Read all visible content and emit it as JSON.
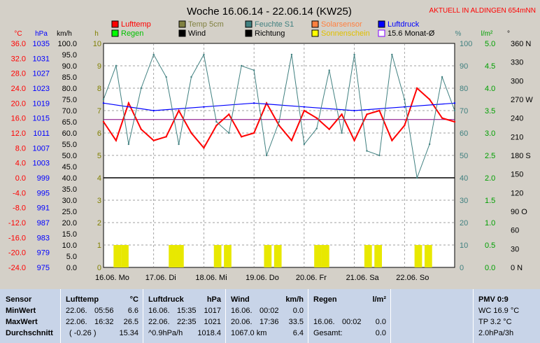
{
  "chart_data": {
    "type": "line",
    "title": "Woche 16.06.14 - 22.06.14 (KW25)",
    "location_note": "AKTUELL IN ALDINGEN 654mNN",
    "unit_labels": {
      "temp": "°C",
      "hpa": "hPa",
      "kmh": "km/h",
      "h": "h",
      "percent": "%",
      "rain": "l/m²",
      "deg": "°"
    },
    "axes": {
      "temp": {
        "ticks": [
          "36.0",
          "32.0",
          "28.0",
          "24.0",
          "20.0",
          "16.0",
          "12.0",
          "8.0",
          "4.0",
          "0.0",
          "-4.0",
          "-8.0",
          "-12.0",
          "-16.0",
          "-20.0",
          "-24.0"
        ],
        "range": [
          -24,
          36
        ]
      },
      "hpa": {
        "ticks": [
          "1035",
          "1031",
          "1027",
          "1023",
          "1019",
          "1015",
          "1011",
          "1007",
          "1003",
          "999",
          "995",
          "991",
          "987",
          "983",
          "979",
          "975"
        ],
        "range": [
          975,
          1035
        ]
      },
      "kmh": {
        "ticks": [
          "100.0",
          "95.0",
          "90.0",
          "85.0",
          "80.0",
          "75.0",
          "70.0",
          "65.0",
          "60.0",
          "55.0",
          "50.0",
          "45.0",
          "40.0",
          "35.0",
          "30.0",
          "25.0",
          "20.0",
          "15.0",
          "10.0",
          "5.0",
          "0.0"
        ],
        "range": [
          0,
          100
        ]
      },
      "h": {
        "ticks": [
          "10",
          "9",
          "8",
          "7",
          "6",
          "5",
          "4",
          "3",
          "2",
          "1",
          "0"
        ],
        "range": [
          0,
          10
        ]
      },
      "percent": {
        "ticks": [
          "100",
          "90",
          "80",
          "70",
          "60",
          "50",
          "40",
          "30",
          "20",
          "10",
          "0"
        ],
        "range": [
          0,
          100
        ]
      },
      "rain": {
        "ticks": [
          "5.0",
          "4.5",
          "4.0",
          "3.5",
          "3.0",
          "2.5",
          "2.0",
          "1.5",
          "1.0",
          "0.5",
          "0.0"
        ],
        "range": [
          0,
          5
        ]
      },
      "dir": {
        "ticks": [
          "360 N",
          "330",
          "300",
          "270 W",
          "240",
          "210",
          "180 S",
          "150",
          "120",
          "90 O",
          "60",
          "30",
          "0  N"
        ],
        "range": [
          0,
          360
        ]
      }
    },
    "x_labels": [
      "16.06. Mo",
      "17.06. Di",
      "18.06. Mi",
      "19.06. Do",
      "20.06. Fr",
      "21.06. Sa",
      "22.06. So"
    ],
    "legend": [
      {
        "name": "Lufttemp",
        "color": "#ff0000"
      },
      {
        "name": "Temp 5cm",
        "color": "#808040"
      },
      {
        "name": "Feuchte S1",
        "color": "#408080"
      },
      {
        "name": "Solarsensor",
        "color": "#ff8040"
      },
      {
        "name": "Luftdruck",
        "color": "#0000ff"
      },
      {
        "name": "Regen",
        "color": "#00ff00"
      },
      {
        "name": "Wind",
        "color": "#000000"
      },
      {
        "name": "Richtung",
        "color": "#000000"
      },
      {
        "name": "Sonnenschein",
        "color": "#ffff00"
      },
      {
        "name": "15.6 Monat-Ø",
        "color": "#8000ff"
      }
    ],
    "series": [
      {
        "name": "Lufttemp",
        "unit": "°C",
        "x": [
          0,
          0.25,
          0.5,
          0.75,
          1,
          1.25,
          1.5,
          1.75,
          2,
          2.25,
          2.5,
          2.75,
          3,
          3.25,
          3.5,
          3.75,
          4,
          4.25,
          4.5,
          4.75,
          5,
          5.25,
          5.5,
          5.75,
          6,
          6.25,
          6.5,
          6.75,
          7
        ],
        "values": [
          15,
          10,
          20,
          13,
          10,
          11,
          18,
          12,
          8,
          14,
          17,
          11,
          12,
          20,
          14,
          10,
          18,
          16,
          13,
          17,
          10,
          17,
          18,
          10,
          14,
          24,
          21,
          16,
          15
        ]
      },
      {
        "name": "Luftdruck",
        "unit": "hPa",
        "x": [
          0,
          1,
          2,
          3,
          4,
          5,
          6,
          7
        ],
        "values": [
          1019,
          1017,
          1018,
          1019,
          1018,
          1017,
          1018,
          1019
        ]
      },
      {
        "name": "Feuchte S1",
        "unit": "%",
        "x": [
          0,
          0.25,
          0.5,
          0.75,
          1,
          1.25,
          1.5,
          1.75,
          2,
          2.25,
          2.5,
          2.75,
          3,
          3.25,
          3.5,
          3.75,
          4,
          4.25,
          4.5,
          4.75,
          5,
          5.25,
          5.5,
          5.75,
          6,
          6.25,
          6.5,
          6.75,
          7
        ],
        "values": [
          75,
          90,
          55,
          80,
          95,
          85,
          55,
          85,
          95,
          65,
          60,
          90,
          88,
          50,
          65,
          95,
          55,
          62,
          88,
          60,
          95,
          52,
          50,
          95,
          75,
          40,
          55,
          85,
          70
        ]
      },
      {
        "name": "Sonnenschein",
        "unit": "h",
        "x": [
          0.2,
          0.35,
          1.3,
          1.45,
          2.2,
          2.4,
          3.2,
          3.4,
          4.2,
          4.35,
          5.2,
          5.4,
          6.2,
          6.4
        ],
        "values": [
          1,
          1,
          1,
          1,
          1,
          1,
          1,
          1,
          1,
          1,
          1,
          1,
          1,
          1
        ]
      }
    ],
    "monthly_mean_temp": 15.6,
    "reference_line_kmh": 40
  },
  "table": {
    "sensor": {
      "header": "Sensor",
      "rows": [
        "MinWert",
        "MaxWert",
        "Durchschnitt"
      ]
    },
    "lufttemp": {
      "header": "Lufttemp",
      "unit": "°C",
      "rows": [
        [
          "22.06.",
          "05:56",
          "6.6"
        ],
        [
          "22.06.",
          "16:32",
          "26.5"
        ],
        [
          "( -0.26 )",
          "",
          "15.34"
        ]
      ]
    },
    "luftdruck": {
      "header": "Luftdruck",
      "unit": "hPa",
      "rows": [
        [
          "16.06.",
          "15:35",
          "1017"
        ],
        [
          "22.06.",
          "22:35",
          "1021"
        ],
        [
          "^0.9hPa/h",
          "",
          "1018.4"
        ]
      ]
    },
    "wind": {
      "header": "Wind",
      "unit": "km/h",
      "rows": [
        [
          "16.06.",
          "00:02",
          "0.0"
        ],
        [
          "20.06.",
          "17:36",
          "33.5"
        ],
        [
          "1067.0 km",
          "",
          "6.4"
        ]
      ]
    },
    "regen": {
      "header": "Regen",
      "unit": "l/m²",
      "rows": [
        [
          "16.06.",
          "00:02",
          "0.0"
        ],
        [
          "Gesamt:",
          "",
          "0.0"
        ]
      ]
    },
    "pmv": {
      "header": "PMV 0:9",
      "rows": [
        "WC 16.9 °C",
        "TP 3.2 °C",
        "2.0hPa/3h"
      ]
    }
  }
}
